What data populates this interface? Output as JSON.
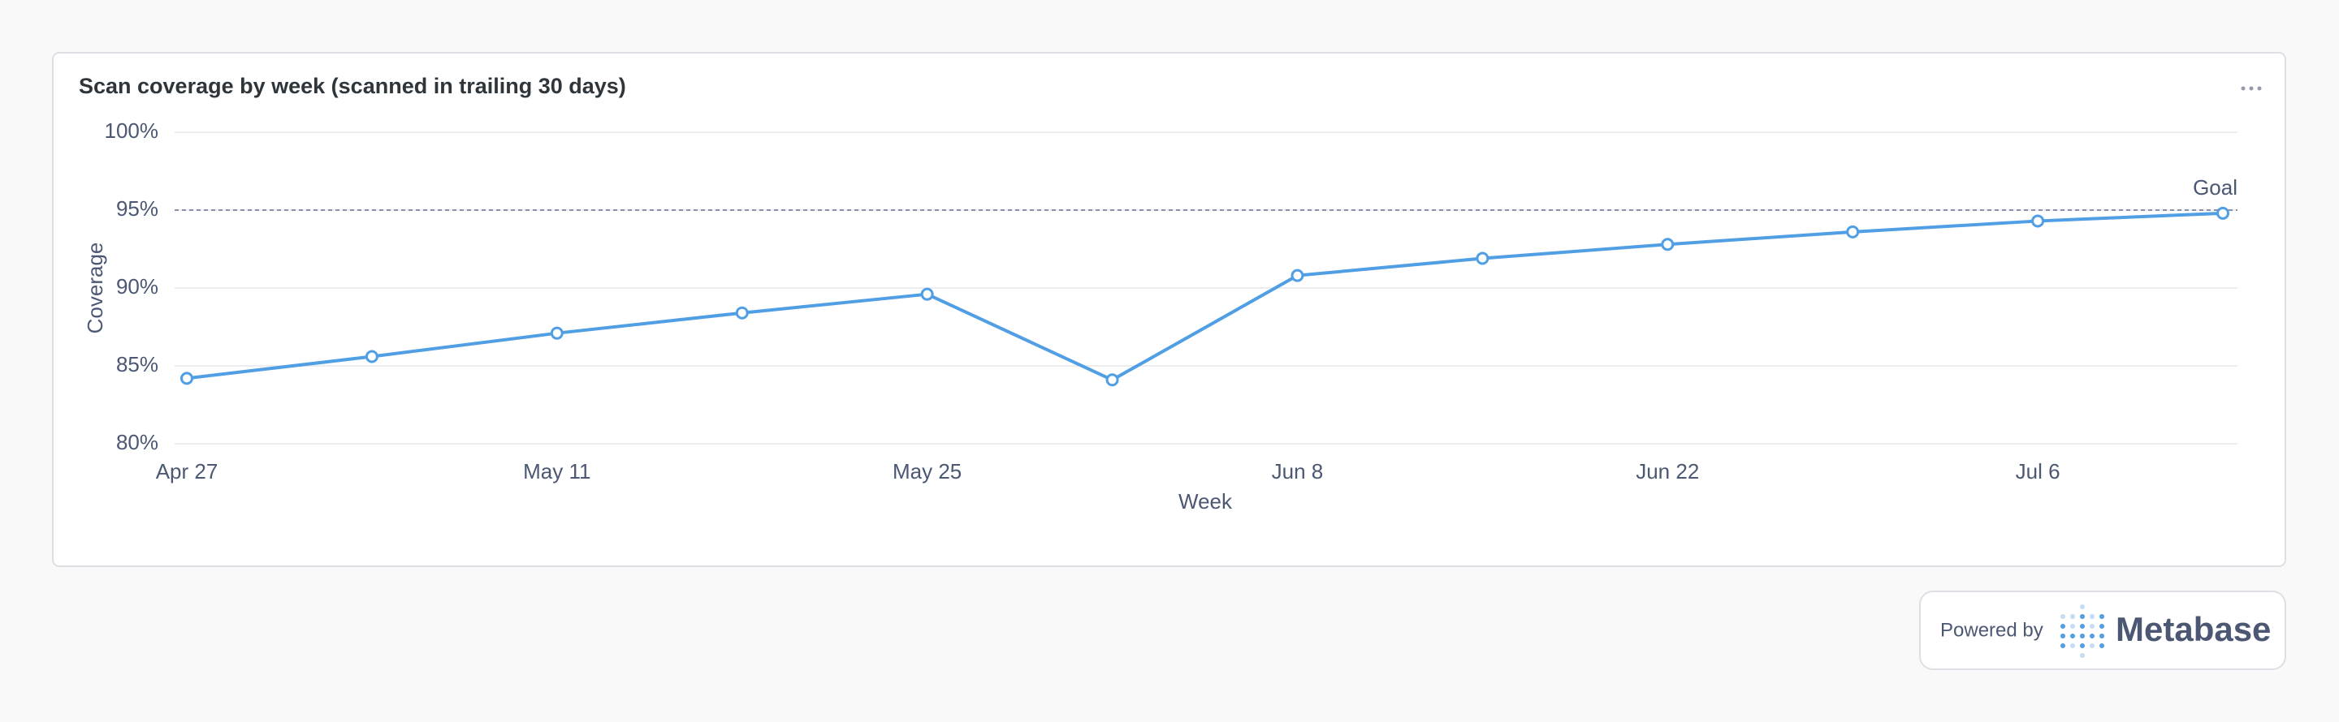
{
  "chart_data": {
    "type": "line",
    "title": "Scan coverage by week (scanned in trailing 30 days)",
    "x_label": "Week",
    "y_label": "Coverage",
    "categories": [
      "Apr 27",
      null,
      "May 11",
      null,
      "May 25",
      null,
      "Jun 8",
      null,
      "Jun 22",
      null,
      "Jul 6",
      null
    ],
    "series": [
      {
        "name": "Coverage",
        "color": "#509ee3",
        "values": [
          84.2,
          85.6,
          87.1,
          88.4,
          89.6,
          84.1,
          90.8,
          91.9,
          92.8,
          93.6,
          94.3,
          94.8
        ]
      }
    ],
    "goal": {
      "label": "Goal",
      "value": 95
    },
    "ylim": [
      80,
      100
    ],
    "yticks": [
      {
        "value": 80,
        "label": "80%"
      },
      {
        "value": 85,
        "label": "85%"
      },
      {
        "value": 90,
        "label": "90%"
      },
      {
        "value": 95,
        "label": "95%"
      },
      {
        "value": 100,
        "label": "100%"
      }
    ],
    "grid": true
  },
  "footer": {
    "powered_by": "Powered by",
    "brand": "Metabase"
  }
}
